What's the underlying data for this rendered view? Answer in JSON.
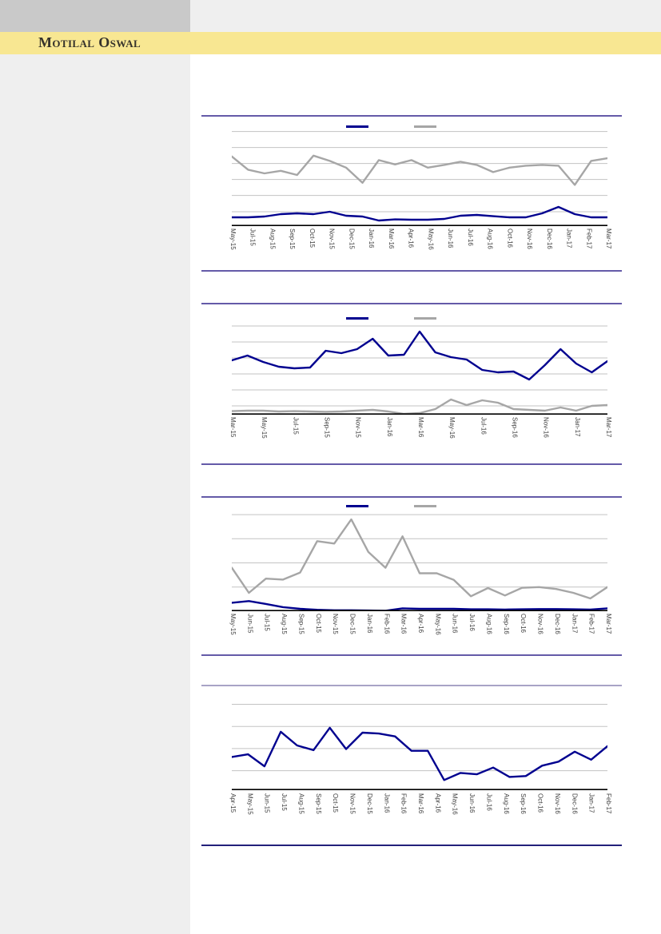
{
  "header": {
    "brand": "Motilal Oswal",
    "band_color": "#f8e792",
    "left_block_color": "#c9c9c9",
    "right_block_color": "#efefef",
    "brand_text_color": "#35322b"
  },
  "sidebar": {
    "color": "#efefef"
  },
  "rules": {
    "chart_border_purple": "#645aa8",
    "chart4_top_border": "#a8a3c6",
    "chart4_bottom_border": "#22207a",
    "gridline_color": "#c3c3c3",
    "axis_color": "#000000"
  },
  "series_colors": {
    "navy": "#00008f",
    "gray": "#a6a6a6"
  },
  "chart_data": [
    {
      "type": "line",
      "legend": {
        "visible": true,
        "labels_visible": false
      },
      "x_labels": [
        "May-15",
        "Jul-15",
        "Aug-15",
        "Sep-15",
        "Oct-15",
        "Nov-15",
        "Dec-15",
        "Jan-16",
        "Mar-16",
        "Apr-16",
        "May-16",
        "Jun-16",
        "Jul-16",
        "Aug-16",
        "Oct-16",
        "Nov-16",
        "Dec-16",
        "Jan-17",
        "Feb-17",
        "Mar-17"
      ],
      "ylim": [
        0,
        6.55
      ],
      "grid_units": [
        0.9,
        1.92,
        2.92,
        3.92,
        4.92,
        5.92
      ],
      "series": [
        {
          "color": "#00008f",
          "values": [
            0.55,
            0.55,
            0.6,
            0.75,
            0.8,
            0.75,
            0.9,
            0.65,
            0.6,
            0.35,
            0.42,
            0.4,
            0.4,
            0.45,
            0.65,
            0.7,
            0.62,
            0.55,
            0.55,
            0.8,
            1.2,
            0.75,
            0.55,
            0.55
          ]
        },
        {
          "color": "#a6a6a6",
          "values": [
            4.36,
            3.53,
            3.3,
            3.46,
            3.2,
            4.41,
            4.08,
            3.66,
            2.71,
            4.13,
            3.86,
            4.13,
            3.66,
            3.83,
            4.03,
            3.83,
            3.38,
            3.66,
            3.78,
            3.83,
            3.78,
            2.58,
            4.08,
            4.25
          ]
        }
      ]
    },
    {
      "type": "line",
      "legend": {
        "visible": true,
        "labels_visible": false
      },
      "x_labels": [
        "Mar-15",
        "May-15",
        "Jul-15",
        "Sep-15",
        "Nov-15",
        "Jan-16",
        "Mar-16",
        "May-16",
        "Jul-16",
        "Sep-16",
        "Nov-16",
        "Jan-17",
        "Mar-17"
      ],
      "ylim": [
        0,
        6.0
      ],
      "grid_units": [
        0.55,
        1.55,
        2.55,
        3.55,
        4.55,
        5.55
      ],
      "series": [
        {
          "color": "#00008f",
          "values": [
            3.4,
            3.7,
            3.3,
            3.0,
            2.9,
            2.95,
            4.0,
            3.85,
            4.1,
            4.75,
            3.7,
            3.75,
            5.2,
            3.9,
            3.6,
            3.45,
            2.8,
            2.65,
            2.7,
            2.2,
            3.1,
            4.1,
            3.2,
            2.65,
            3.35
          ]
        },
        {
          "color": "#a6a6a6",
          "values": [
            0.22,
            0.25,
            0.25,
            0.2,
            0.22,
            0.2,
            0.18,
            0.2,
            0.25,
            0.3,
            0.2,
            0.05,
            0.1,
            0.35,
            0.95,
            0.6,
            0.9,
            0.75,
            0.35,
            0.3,
            0.25,
            0.45,
            0.25,
            0.55,
            0.6
          ]
        }
      ]
    },
    {
      "type": "line",
      "legend": {
        "visible": true,
        "labels_visible": false
      },
      "x_labels": [
        "May-15",
        "Jun-15",
        "Jul-15",
        "Aug-15",
        "Sep-15",
        "Oct-15",
        "Nov-15",
        "Dec-15",
        "Jan-16",
        "Feb-16",
        "Mar-16",
        "Apr-16",
        "May-16",
        "Jun-16",
        "Jul-16",
        "Aug-16",
        "Sep-16",
        "Oct-16",
        "Nov-16",
        "Dec-16",
        "Jan-17",
        "Feb-17",
        "Mar-17"
      ],
      "ylim": [
        0,
        4.3
      ],
      "grid_units": [
        1,
        2,
        3,
        4
      ],
      "series": [
        {
          "color": "#00008f",
          "values": [
            0.35,
            0.42,
            0.3,
            0.17,
            0.1,
            0.06,
            0.04,
            0.04,
            0.03,
            0.02,
            0.12,
            0.1,
            0.1,
            0.1,
            0.08,
            0.08,
            0.07,
            0.08,
            0.09,
            0.09,
            0.08,
            0.07,
            0.12
          ]
        },
        {
          "color": "#a6a6a6",
          "values": [
            1.8,
            0.76,
            1.35,
            1.31,
            1.6,
            2.9,
            2.8,
            3.8,
            2.45,
            1.8,
            3.1,
            1.57,
            1.57,
            1.3,
            0.62,
            0.96,
            0.65,
            0.97,
            1.0,
            0.92,
            0.76,
            0.53,
            1.0
          ]
        }
      ]
    },
    {
      "type": "line",
      "legend": {
        "visible": false,
        "labels_visible": false
      },
      "x_labels": [
        "Apr-15",
        "May-15",
        "Jun-15",
        "Jul-15",
        "Aug-15",
        "Sep-15",
        "Oct-15",
        "Nov-15",
        "Dec-15",
        "Jan-16",
        "Feb-16",
        "Mar-16",
        "Apr-16",
        "May-16",
        "Jun-16",
        "Jul-16",
        "Aug-16",
        "Sep-16",
        "Oct-16",
        "Nov-16",
        "Dec-16",
        "Jan-17",
        "Feb-17"
      ],
      "ylim": [
        0,
        4.26
      ],
      "grid_units": [
        0.88,
        1.88,
        2.88,
        3.88
      ],
      "series": [
        {
          "color": "#00008f",
          "values": [
            1.5,
            1.62,
            1.08,
            2.64,
            2.02,
            1.81,
            2.82,
            1.86,
            2.6,
            2.56,
            2.43,
            1.78,
            1.78,
            0.46,
            0.78,
            0.72,
            1.02,
            0.6,
            0.64,
            1.11,
            1.29,
            1.74,
            1.38,
            1.99
          ]
        }
      ]
    }
  ]
}
